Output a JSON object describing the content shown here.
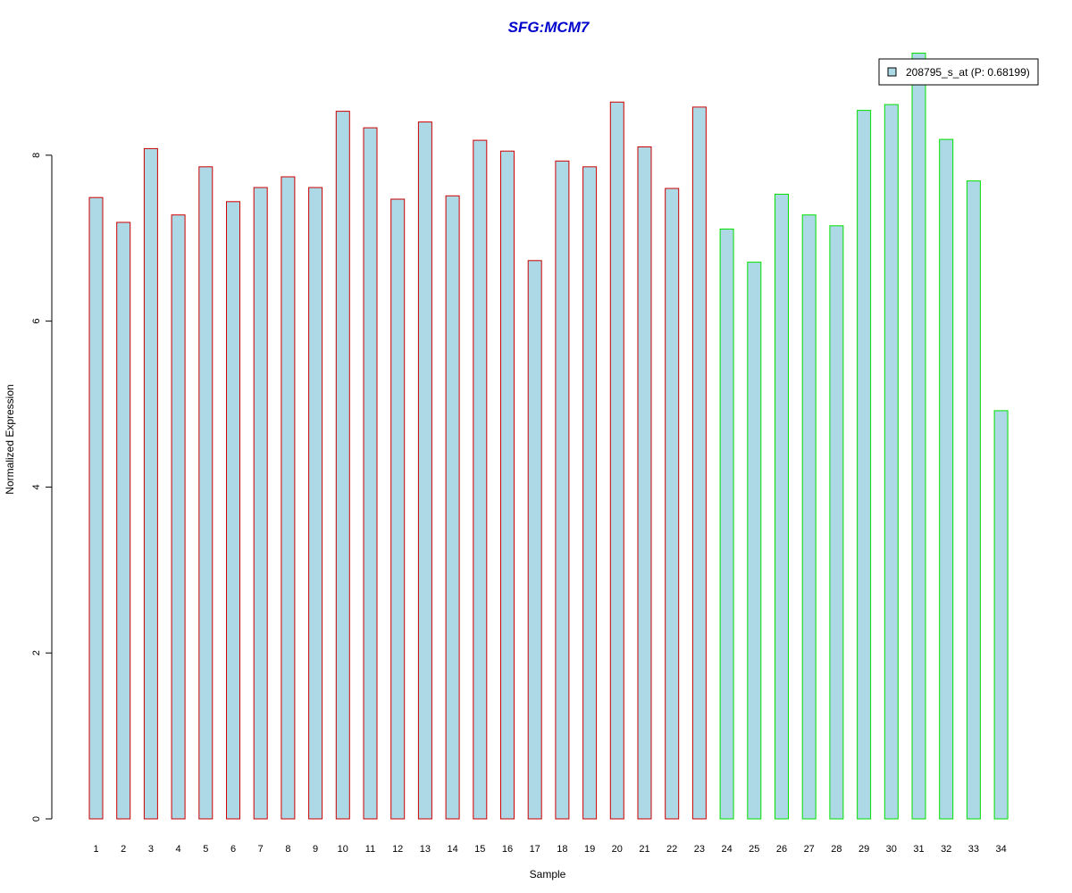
{
  "chart_data": {
    "type": "bar",
    "title": "SFG:MCM7",
    "xlabel": "Sample",
    "ylabel": "Normalized Expression",
    "categories": [
      "1",
      "2",
      "3",
      "4",
      "5",
      "6",
      "7",
      "8",
      "9",
      "10",
      "11",
      "12",
      "13",
      "14",
      "15",
      "16",
      "17",
      "18",
      "19",
      "20",
      "21",
      "22",
      "23",
      "24",
      "25",
      "26",
      "27",
      "28",
      "29",
      "30",
      "31",
      "32",
      "33",
      "34"
    ],
    "series": [
      {
        "name": "208795_s_at (P: 0.68199)",
        "values": [
          7.49,
          7.19,
          8.08,
          7.28,
          7.86,
          7.44,
          7.61,
          7.74,
          7.61,
          8.53,
          8.33,
          7.47,
          8.4,
          7.51,
          8.18,
          8.05,
          6.73,
          7.93,
          7.86,
          8.64,
          8.1,
          7.6,
          8.58,
          7.11,
          6.71,
          7.53,
          7.28,
          7.15,
          8.54,
          8.61,
          9.23,
          8.19,
          7.69,
          4.92
        ]
      }
    ],
    "group_border_colors": [
      "#cc0000",
      "#cc0000",
      "#cc0000",
      "#cc0000",
      "#cc0000",
      "#cc0000",
      "#cc0000",
      "#cc0000",
      "#cc0000",
      "#cc0000",
      "#cc0000",
      "#cc0000",
      "#cc0000",
      "#cc0000",
      "#cc0000",
      "#cc0000",
      "#cc0000",
      "#cc0000",
      "#cc0000",
      "#cc0000",
      "#cc0000",
      "#cc0000",
      "#cc0000",
      "#00e000",
      "#00e000",
      "#00e000",
      "#00e000",
      "#00e000",
      "#00e000",
      "#00e000",
      "#00e000",
      "#00e000",
      "#00e000",
      "#00e000"
    ],
    "bar_fill": "#add8e6",
    "title_color": "#0000cc",
    "yticks": [
      0,
      2,
      4,
      6,
      8
    ],
    "ylim": [
      0,
      9.23
    ],
    "grid": false,
    "legend_position": "top-right"
  }
}
